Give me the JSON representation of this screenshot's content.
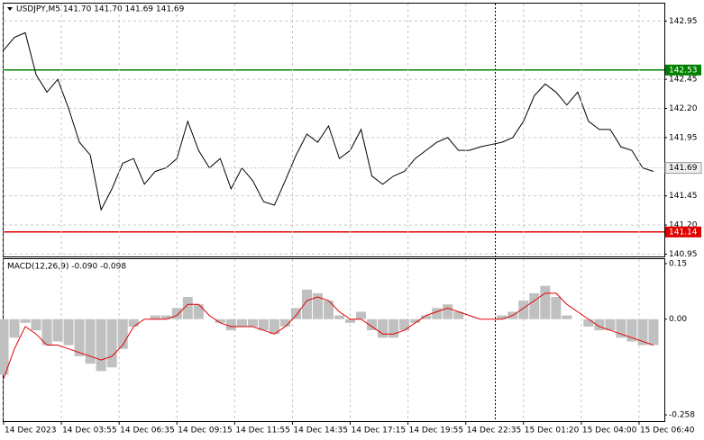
{
  "chart_data": [
    {
      "type": "line",
      "title": "USDJPY,M5  141.70 141.70 141.69 141.69",
      "color": "#000000",
      "x": [
        0,
        6,
        12,
        18,
        24,
        30,
        36,
        42,
        48,
        54,
        60,
        66,
        72,
        78,
        84,
        90,
        96,
        102,
        108,
        114,
        120,
        126,
        132,
        138,
        144,
        150,
        156,
        162,
        168,
        174,
        180,
        186,
        192,
        198,
        204,
        210,
        216,
        222,
        228,
        234,
        240,
        246,
        252,
        258,
        264,
        270,
        276,
        282,
        288,
        294,
        300,
        306,
        312,
        318,
        324,
        330,
        336,
        342,
        348,
        354,
        360
      ],
      "values": [
        142.7,
        142.81,
        142.85,
        142.49,
        142.34,
        142.45,
        142.2,
        141.91,
        141.8,
        141.33,
        141.51,
        141.73,
        141.77,
        141.55,
        141.66,
        141.69,
        141.77,
        142.09,
        141.84,
        141.69,
        141.77,
        141.51,
        141.69,
        141.58,
        141.4,
        141.37,
        141.58,
        141.8,
        141.98,
        141.91,
        142.05,
        141.77,
        141.84,
        142.02,
        141.62,
        141.55,
        141.62,
        141.66,
        141.77,
        141.84,
        141.91,
        141.95,
        141.84,
        141.84,
        141.87,
        141.89,
        141.91,
        141.95,
        142.09,
        142.31,
        142.41,
        142.34,
        142.23,
        142.34,
        142.09,
        142.02,
        142.02,
        141.87,
        141.84,
        141.69,
        141.66
      ],
      "xlim": [
        0,
        366
      ],
      "ylim": [
        140.93,
        143.1
      ],
      "yticks": [
        142.95,
        142.45,
        {
          "value": 142.2,
          "label": "142.20"
        },
        141.95,
        141.45,
        {
          "value": 141.2,
          "label": "141.20"
        },
        140.95
      ],
      "grid": true,
      "levels": [
        {
          "value": 142.53,
          "color": "#008000"
        },
        {
          "value": 141.14,
          "color": "#e00000"
        }
      ],
      "last": 141.69
    },
    {
      "type": "bar",
      "title": "MACD(12,26,9) -0.090 -0.098",
      "color": "#c0c0c0",
      "x": [
        0,
        6,
        12,
        18,
        24,
        30,
        36,
        42,
        48,
        54,
        60,
        66,
        72,
        78,
        84,
        90,
        96,
        102,
        108,
        114,
        120,
        126,
        132,
        138,
        144,
        150,
        156,
        162,
        168,
        174,
        180,
        186,
        192,
        198,
        204,
        210,
        216,
        222,
        228,
        234,
        240,
        246,
        252,
        258,
        264,
        270,
        276,
        282,
        288,
        294,
        300,
        306,
        312,
        318,
        324,
        330,
        336,
        342,
        348,
        354,
        360
      ],
      "values": [
        -0.15,
        -0.05,
        -0.01,
        -0.03,
        -0.07,
        -0.06,
        -0.07,
        -0.1,
        -0.12,
        -0.14,
        -0.13,
        -0.08,
        -0.02,
        0.0,
        0.01,
        0.01,
        0.03,
        0.06,
        0.04,
        0.0,
        -0.01,
        -0.03,
        -0.02,
        -0.02,
        -0.03,
        -0.04,
        -0.02,
        0.03,
        0.08,
        0.07,
        0.05,
        0.01,
        -0.01,
        0.02,
        -0.03,
        -0.05,
        -0.05,
        -0.03,
        -0.01,
        0.01,
        0.03,
        0.04,
        0.02,
        0.0,
        0.0,
        0.0,
        0.01,
        0.02,
        0.05,
        0.07,
        0.09,
        0.06,
        0.01,
        0.0,
        -0.02,
        -0.03,
        -0.03,
        -0.05,
        -0.06,
        -0.07,
        -0.07
      ],
      "signal": {
        "color": "#e00000",
        "values": [
          -0.16,
          -0.08,
          -0.02,
          -0.04,
          -0.07,
          -0.07,
          -0.08,
          -0.09,
          -0.1,
          -0.11,
          -0.1,
          -0.07,
          -0.02,
          0.0,
          0.0,
          0.0,
          0.01,
          0.04,
          0.04,
          0.01,
          -0.01,
          -0.02,
          -0.02,
          -0.02,
          -0.03,
          -0.04,
          -0.02,
          0.01,
          0.05,
          0.06,
          0.05,
          0.02,
          0.0,
          0.0,
          -0.02,
          -0.04,
          -0.04,
          -0.03,
          -0.01,
          0.01,
          0.02,
          0.03,
          0.02,
          0.01,
          0.0,
          0.0,
          0.0,
          0.01,
          0.03,
          0.05,
          0.07,
          0.07,
          0.04,
          0.02,
          0.0,
          -0.02,
          -0.03,
          -0.04,
          -0.05,
          -0.06,
          -0.07
        ]
      },
      "xlim": [
        0,
        366
      ],
      "ylim": [
        -0.275,
        0.162
      ],
      "yticks": [
        0.15,
        {
          "value": 0,
          "label": "0.00"
        },
        -0.258
      ],
      "xticks": [
        {
          "value": 0,
          "label": "14 Dec 2023"
        },
        {
          "value": 32,
          "label": "14 Dec 03:55"
        },
        {
          "value": 64,
          "label": "14 Dec 06:35"
        },
        {
          "value": 96,
          "label": "14 Dec 09:15"
        },
        {
          "value": 128,
          "label": "14 Dec 11:55"
        },
        {
          "value": 160,
          "label": "14 Dec 14:35"
        },
        {
          "value": 192,
          "label": "14 Dec 17:15"
        },
        {
          "value": 224,
          "label": "14 Dec 19:55"
        },
        {
          "value": 256,
          "label": "14 Dec 22:35"
        },
        {
          "value": 288,
          "label": "15 Dec 01:20"
        },
        {
          "value": 320,
          "label": "15 Dec 04:00"
        },
        {
          "value": 352,
          "label": "15 Dec 06:40"
        }
      ]
    }
  ]
}
